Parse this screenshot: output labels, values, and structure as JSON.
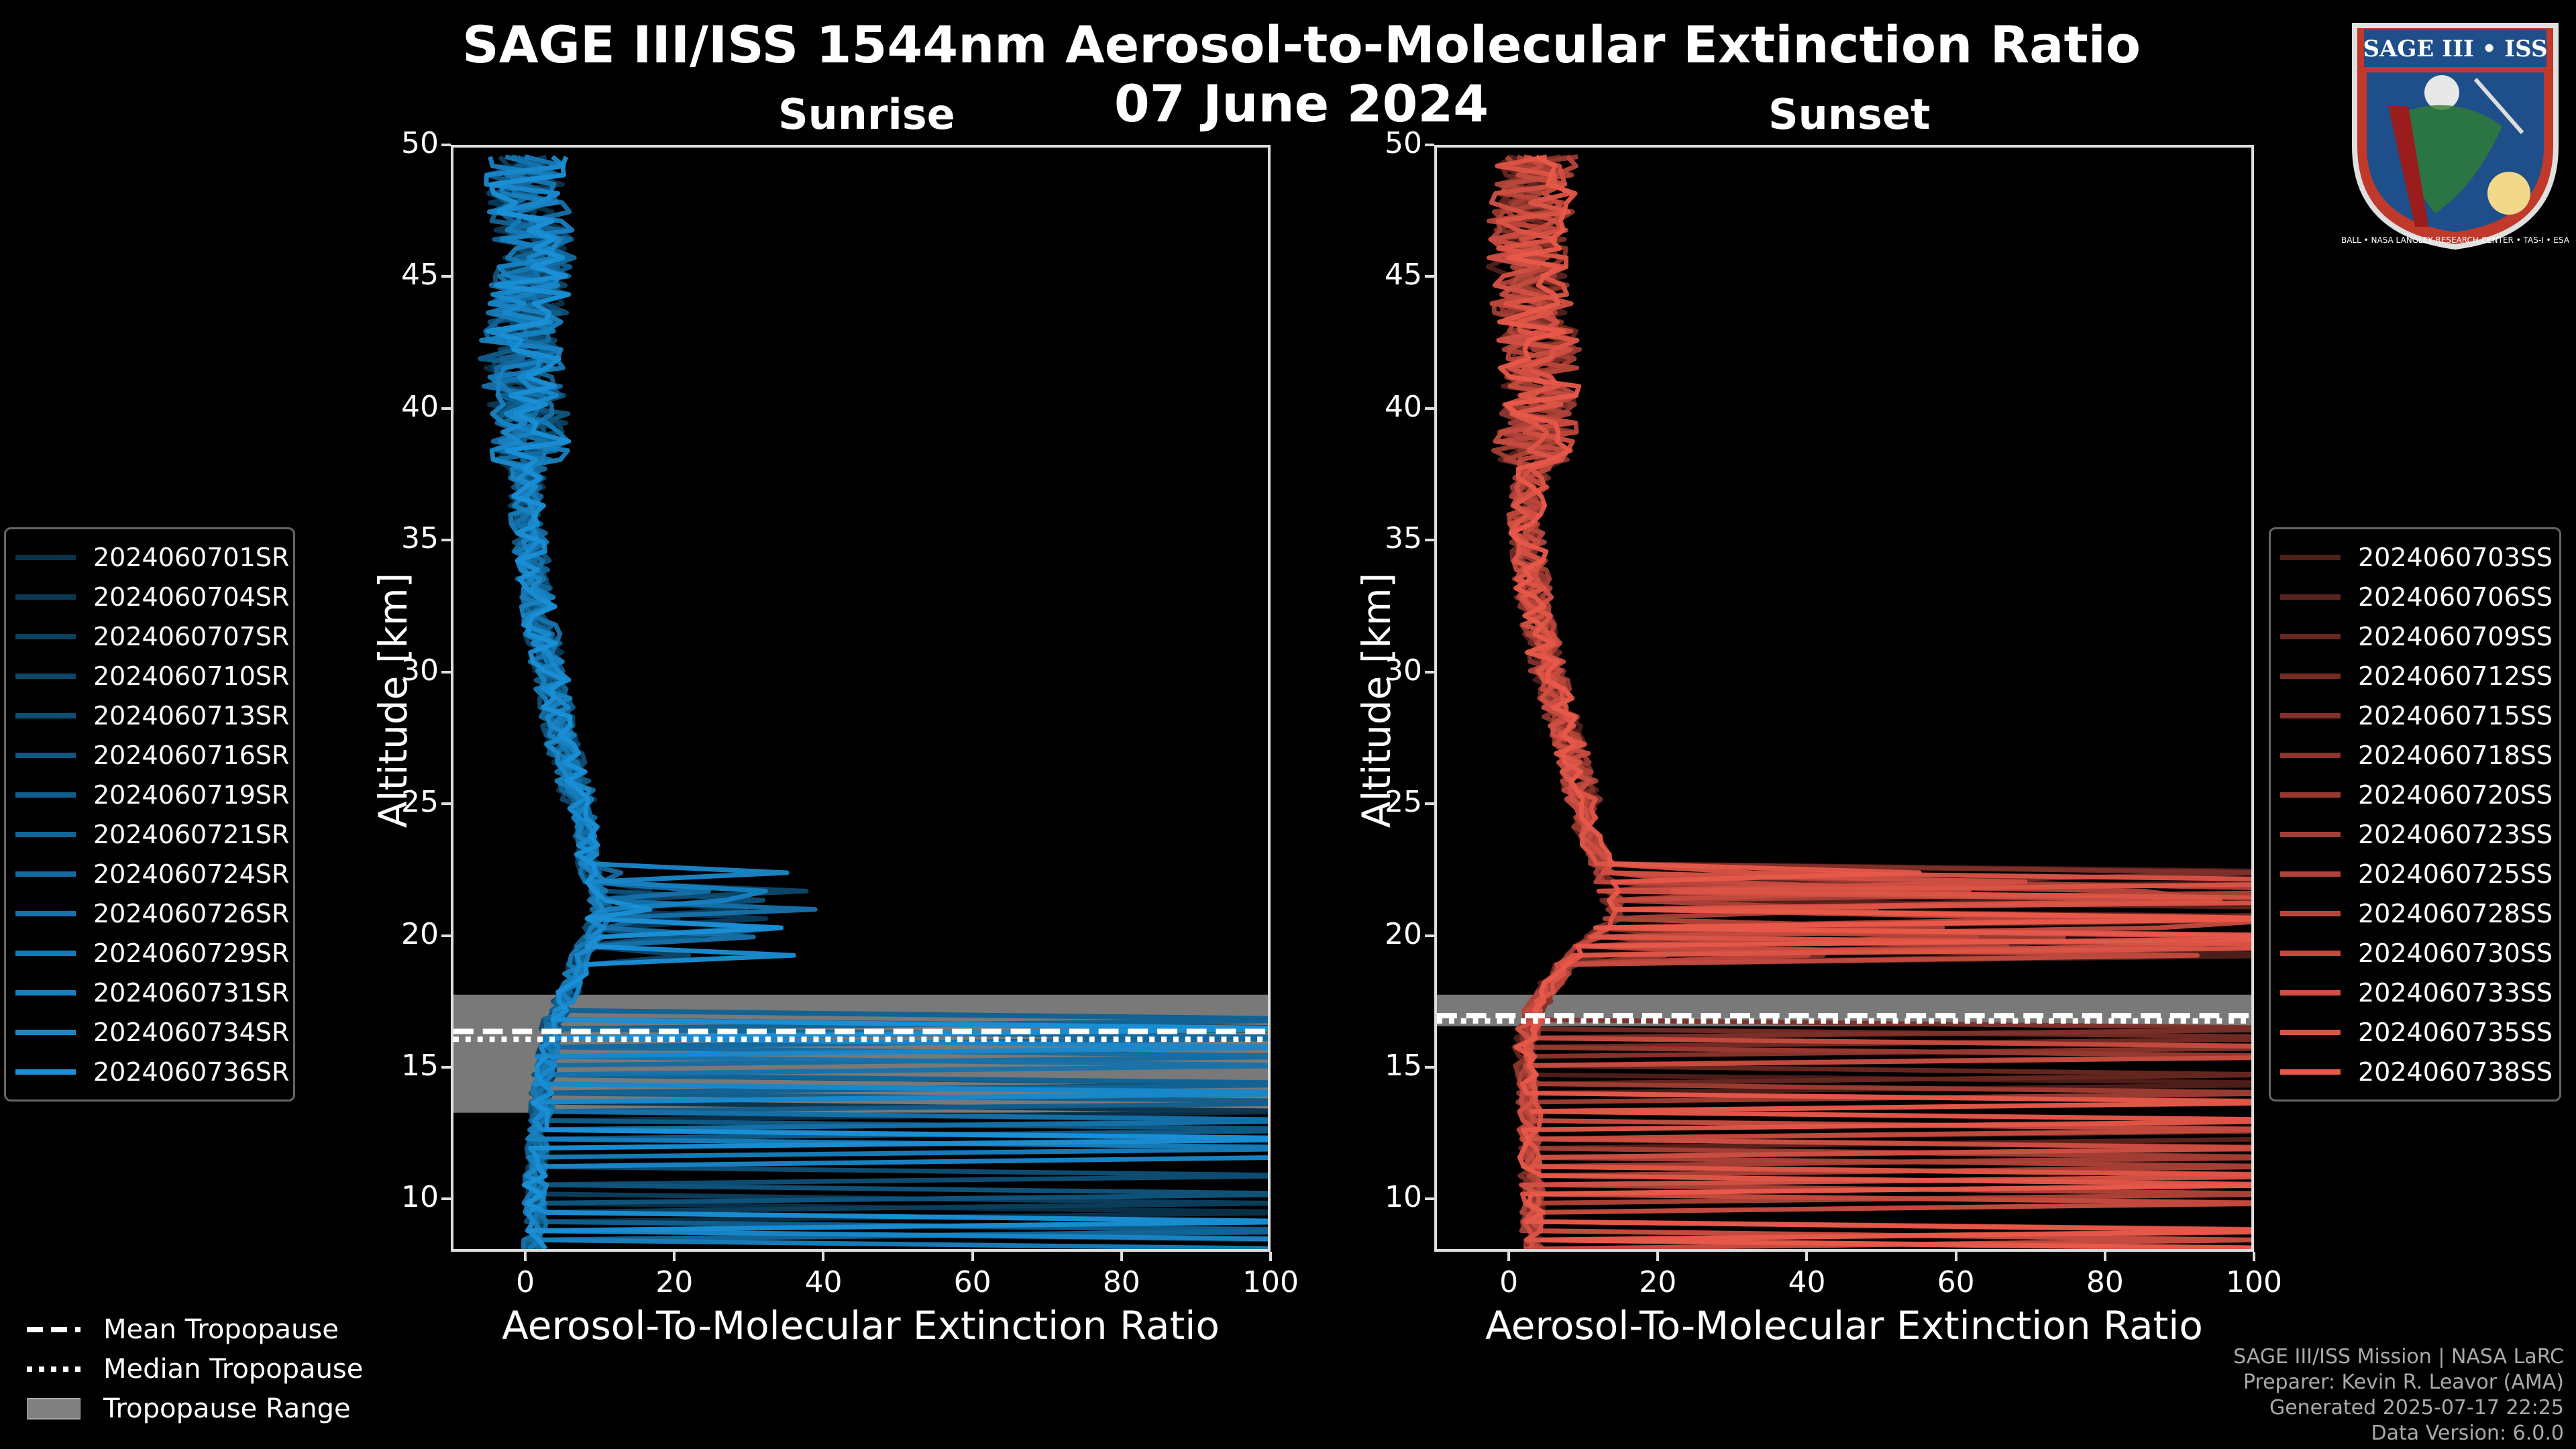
{
  "title": "SAGE III/ISS 1544nm Aerosol-to-Molecular Extinction Ratio",
  "date": "07 June 2024",
  "colors": {
    "sunrise": "#1a8fd6",
    "sunset": "#e8584a",
    "tropopause_fill": "#808080"
  },
  "logo": {
    "name": "SAGE III • ISS",
    "ring_text": "BALL • NASA LANGLEY RESEARCH CENTER • TAS-I • ESA"
  },
  "footer": {
    "mission": "SAGE III/ISS Mission | NASA LaRC",
    "preparer": "Preparer: Kevin R. Leavor (AMA)",
    "generated": "Generated 2025-07-17 22:25",
    "version": "Data Version: 6.0.0"
  },
  "tropopause_legend": {
    "mean": "Mean Tropopause",
    "median": "Median Tropopause",
    "range": "Tropopause Range"
  },
  "chart_data": [
    {
      "type": "line",
      "title": "Sunrise",
      "xlabel": "Aerosol-To-Molecular Extinction Ratio",
      "ylabel": "Altitude [km]",
      "xlim": [
        -10,
        100
      ],
      "ylim": [
        8,
        50
      ],
      "xticks": [
        "0",
        "20",
        "40",
        "60",
        "80",
        "100"
      ],
      "yticks": [
        "10",
        "15",
        "20",
        "25",
        "30",
        "35",
        "40",
        "45",
        "50"
      ],
      "tropopause": {
        "mean": 16.3,
        "median": 16.0,
        "range": [
          13.2,
          17.7
        ]
      },
      "series": [
        {
          "name": "2024060701SR"
        },
        {
          "name": "2024060704SR"
        },
        {
          "name": "2024060707SR"
        },
        {
          "name": "2024060710SR"
        },
        {
          "name": "2024060713SR"
        },
        {
          "name": "2024060716SR"
        },
        {
          "name": "2024060719SR"
        },
        {
          "name": "2024060721SR"
        },
        {
          "name": "2024060724SR"
        },
        {
          "name": "2024060726SR"
        },
        {
          "name": "2024060729SR"
        },
        {
          "name": "2024060731SR"
        },
        {
          "name": "2024060734SR"
        },
        {
          "name": "2024060736SR"
        }
      ],
      "typical_profile": {
        "altitude": [
          8,
          10,
          12,
          13,
          14,
          15,
          16,
          17,
          18,
          19,
          20,
          21,
          22,
          23,
          24,
          25,
          27,
          30,
          33,
          36,
          38,
          40,
          42,
          44,
          46,
          48,
          50
        ],
        "ratio": [
          1,
          1,
          1.5,
          1.8,
          2,
          2.5,
          3,
          4,
          6,
          7,
          9,
          10,
          9,
          8,
          8,
          7,
          5,
          3,
          1,
          0,
          0,
          0,
          -1,
          0,
          1,
          0,
          0
        ]
      }
    },
    {
      "type": "line",
      "title": "Sunset",
      "xlabel": "Aerosol-To-Molecular Extinction Ratio",
      "ylabel": "Altitude [km]",
      "xlim": [
        -10,
        100
      ],
      "ylim": [
        8,
        50
      ],
      "xticks": [
        "0",
        "20",
        "40",
        "60",
        "80",
        "100"
      ],
      "yticks": [
        "10",
        "15",
        "20",
        "25",
        "30",
        "35",
        "40",
        "45",
        "50"
      ],
      "tropopause": {
        "mean": 16.9,
        "median": 16.7,
        "range": [
          16.5,
          17.7
        ]
      },
      "series": [
        {
          "name": "2024060703SS"
        },
        {
          "name": "2024060706SS"
        },
        {
          "name": "2024060709SS"
        },
        {
          "name": "2024060712SS"
        },
        {
          "name": "2024060715SS"
        },
        {
          "name": "2024060718SS"
        },
        {
          "name": "2024060720SS"
        },
        {
          "name": "2024060723SS"
        },
        {
          "name": "2024060725SS"
        },
        {
          "name": "2024060728SS"
        },
        {
          "name": "2024060730SS"
        },
        {
          "name": "2024060733SS"
        },
        {
          "name": "2024060735SS"
        },
        {
          "name": "2024060738SS"
        }
      ],
      "typical_profile": {
        "altitude": [
          8,
          10,
          12,
          13,
          14,
          15,
          16,
          17,
          18,
          19,
          20,
          21,
          22,
          23,
          24,
          25,
          27,
          30,
          33,
          36,
          38,
          40,
          42,
          44,
          46,
          48,
          50
        ],
        "ratio": [
          3,
          3,
          2.5,
          2.5,
          2.5,
          2,
          2,
          3,
          5,
          8,
          12,
          14,
          13,
          12,
          10,
          10,
          8,
          5,
          3,
          2,
          3,
          4,
          4,
          3,
          2,
          3,
          4
        ]
      }
    }
  ]
}
